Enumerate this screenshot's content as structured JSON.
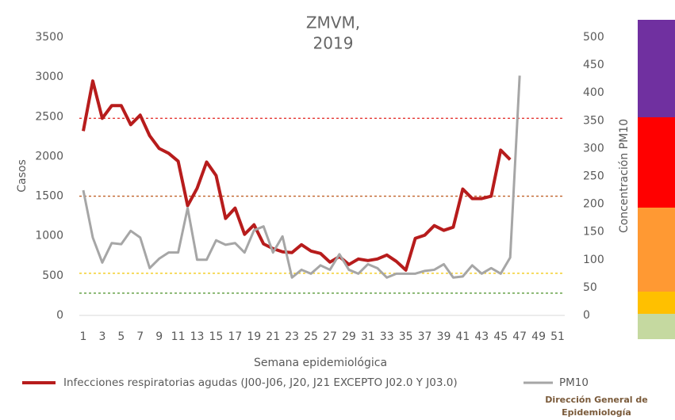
{
  "chart_data": {
    "type": "line",
    "title": [
      "ZMVM,",
      "2019"
    ],
    "x_label": "Semana epidemiológica",
    "y_label": "Casos",
    "y2_label": "Concentración PM10",
    "x": [
      1,
      2,
      3,
      4,
      5,
      6,
      7,
      8,
      9,
      10,
      11,
      12,
      13,
      14,
      15,
      16,
      17,
      18,
      19,
      20,
      21,
      22,
      23,
      24,
      25,
      26,
      27,
      28,
      29,
      30,
      31,
      32,
      33,
      34,
      35,
      36,
      37,
      38,
      39,
      40,
      41,
      42,
      43,
      44,
      45,
      46,
      47
    ],
    "series": [
      {
        "name": "Infecciones respiratorias agudas (J00-J06, J20, J21 EXCEPTO J02.0 Y J03.0)",
        "color": "#b71c1c",
        "width": 4,
        "values": [
          2320,
          2950,
          2480,
          2640,
          2640,
          2400,
          2520,
          2260,
          2100,
          2040,
          1940,
          1380,
          1600,
          1930,
          1760,
          1220,
          1350,
          1020,
          1140,
          900,
          840,
          800,
          790,
          890,
          810,
          780,
          670,
          740,
          640,
          710,
          690,
          710,
          760,
          680,
          570,
          970,
          1010,
          1130,
          1070,
          1110,
          1590,
          1470,
          1470,
          1500,
          2080,
          1960,
          null
        ]
      },
      {
        "name": "PM10",
        "color": "#a6a6a6",
        "width": 3,
        "axis": "y2",
        "values": [
          225,
          140,
          95,
          130,
          128,
          152,
          140,
          85,
          102,
          113,
          113,
          193,
          100,
          100,
          135,
          127,
          130,
          113,
          153,
          160,
          113,
          142,
          68,
          82,
          75,
          90,
          82,
          110,
          82,
          75,
          92,
          85,
          68,
          75,
          75,
          75,
          80,
          82,
          92,
          68,
          70,
          90,
          75,
          85,
          75,
          104,
          431
        ]
      }
    ],
    "thresholds": [
      {
        "value": 2480,
        "color": "#e53935"
      },
      {
        "value": 1500,
        "color": "#c0622a"
      },
      {
        "value": 530,
        "color": "#f2c500"
      },
      {
        "value": 280,
        "color": "#5a9a3a"
      }
    ],
    "xlim": [
      1,
      51
    ],
    "xticks": [
      1,
      3,
      5,
      7,
      9,
      11,
      13,
      15,
      17,
      19,
      21,
      23,
      25,
      27,
      29,
      31,
      33,
      35,
      37,
      39,
      41,
      43,
      45,
      47,
      49,
      51
    ],
    "ylim": [
      0,
      3500
    ],
    "yticks": [
      0,
      500,
      1000,
      1500,
      2000,
      2500,
      3000,
      3500
    ],
    "y2lim": [
      0,
      500
    ],
    "y2ticks": [
      0,
      50,
      100,
      150,
      200,
      250,
      300,
      350,
      400,
      450,
      500
    ],
    "logo": [
      "Dirección General de",
      "Epidemiología"
    ]
  }
}
